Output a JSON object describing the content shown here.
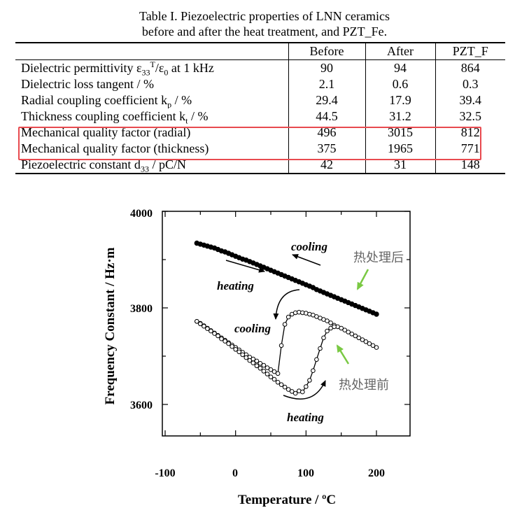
{
  "caption": {
    "line1": "Table I. Piezoelectric properties of LNN ceramics",
    "line2": "before and after the heat treatment, and PZT_Fe."
  },
  "table": {
    "headers": [
      "",
      "Before",
      "After",
      "PZT_F"
    ],
    "rows": [
      {
        "label_main": "Dielectric permittivity ε",
        "label_sub": "33",
        "label_sup": "T",
        "label_rest": "/ε",
        "label_sub2": "0",
        "label_tail": " at 1 kHz",
        "values": [
          "90",
          "94",
          "864"
        ]
      },
      {
        "label_main": "Dielectric loss tangent / %",
        "values": [
          "2.1",
          "0.6",
          "0.3"
        ]
      },
      {
        "label_main": "Radial coupling coefficient k",
        "label_sub": "p",
        "label_tail": " / %",
        "values": [
          "29.4",
          "17.9",
          "39.4"
        ]
      },
      {
        "label_main": "Thickness coupling coefficient k",
        "label_sub": "t",
        "label_tail": " / %",
        "values": [
          "44.5",
          "31.2",
          "32.5"
        ]
      },
      {
        "label_main": "Mechanical quality factor (radial)",
        "values": [
          "496",
          "3015",
          "812"
        ]
      },
      {
        "label_main": "Mechanical quality factor (thickness)",
        "values": [
          "375",
          "1965",
          "771"
        ]
      },
      {
        "label_main": "Piezoelectric constant d",
        "label_sub": "33",
        "label_tail": " / pC/N",
        "values": [
          "42",
          "31",
          "148"
        ]
      }
    ],
    "highlight_color": "#e84a4f"
  },
  "chart_data": {
    "type": "line",
    "xlabel": "Temperature / ºC",
    "ylabel": "Frequency Constant  /  Hz·m",
    "xlim": [
      -100,
      200
    ],
    "ylim": [
      3520,
      4000
    ],
    "xticks": [
      "-100",
      "0",
      "100",
      "200"
    ],
    "yticks": [
      "3600",
      "3800",
      "4000"
    ],
    "annotations": {
      "cooling_top": "cooling",
      "heating_top": "heating",
      "cooling_mid": "cooling",
      "heating_bottom": "heating",
      "after_label": "热处理后",
      "before_label": "热处理前"
    },
    "series": [
      {
        "x": [
          -55,
          -50,
          -45,
          -40,
          -35,
          -30,
          -25,
          -20,
          -15,
          -10,
          -5,
          0,
          5,
          10,
          15,
          20,
          25,
          30,
          35,
          40,
          45,
          50,
          55,
          60,
          65,
          70,
          75,
          80,
          85,
          90,
          95,
          100,
          105,
          110,
          115,
          120,
          125,
          130,
          135,
          140,
          145,
          150,
          155,
          160,
          165,
          170,
          175,
          180,
          185,
          190,
          195,
          200
        ],
        "values": [
          3934,
          3932,
          3930,
          3928,
          3926,
          3924,
          3921,
          3918,
          3916,
          3913,
          3910,
          3907,
          3904,
          3901,
          3899,
          3896,
          3893,
          3890,
          3887,
          3884,
          3881,
          3878,
          3875,
          3872,
          3869,
          3866,
          3863,
          3860,
          3857,
          3854,
          3851,
          3848,
          3845,
          3842,
          3838,
          3835,
          3832,
          3829,
          3826,
          3823,
          3820,
          3817,
          3814,
          3811,
          3808,
          3805,
          3802,
          3799,
          3796,
          3793,
          3790,
          3787
        ]
      },
      {
        "x": [
          -55,
          -50,
          -45,
          -40,
          -35,
          -30,
          -25,
          -20,
          -15,
          -10,
          -5,
          0,
          5,
          10,
          15,
          20,
          25,
          30,
          35,
          40,
          45,
          50,
          55,
          60,
          65,
          70,
          75,
          80,
          85,
          90,
          95,
          100,
          105,
          110,
          115,
          120,
          125,
          130,
          135,
          140,
          145,
          150,
          155,
          160,
          165,
          170,
          175,
          180,
          185,
          190,
          195,
          200
        ],
        "values": [
          3772,
          3768,
          3763,
          3758,
          3753,
          3748,
          3743,
          3738,
          3733,
          3728,
          3723,
          3718,
          3713,
          3708,
          3703,
          3698,
          3694,
          3690,
          3685,
          3681,
          3676,
          3672,
          3668,
          3664,
          3722,
          3766,
          3781,
          3787,
          3790,
          3791,
          3790,
          3789,
          3787,
          3785,
          3782,
          3779,
          3776,
          3773,
          3769,
          3764,
          3761,
          3758,
          3754,
          3750,
          3746,
          3742,
          3738,
          3734,
          3730,
          3726,
          3722,
          3718
        ]
      },
      {
        "x": [
          -55,
          -50,
          -45,
          -40,
          -35,
          -30,
          -25,
          -20,
          -15,
          -10,
          -5,
          0,
          5,
          10,
          15,
          20,
          25,
          30,
          35,
          40,
          45,
          50,
          55,
          60,
          65,
          70,
          75,
          80,
          85,
          90,
          95,
          100,
          105,
          110,
          115,
          120,
          125,
          130,
          135,
          140
        ],
        "values": [
          3772,
          3767,
          3762,
          3757,
          3752,
          3747,
          3742,
          3736,
          3731,
          3726,
          3720,
          3714,
          3709,
          3703,
          3697,
          3691,
          3686,
          3680,
          3675,
          3669,
          3663,
          3657,
          3652,
          3646,
          3641,
          3636,
          3631,
          3627,
          3623,
          3628,
          3626,
          3637,
          3650,
          3670,
          3693,
          3716,
          3738,
          3752,
          3758,
          3761
        ]
      }
    ]
  }
}
